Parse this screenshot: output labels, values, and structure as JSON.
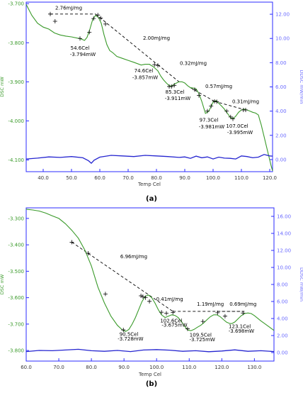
{
  "colors": {
    "dsc": "#3a9a2a",
    "ddsc": "#2525d0",
    "frame": "#2b2bff",
    "axis_text": "#3a3a3a",
    "left_label": "#3a9a2a",
    "right_label": "#6a6aff",
    "annotation": "#000000"
  },
  "chart_data": [
    {
      "type": "line",
      "panel_label": "(a)",
      "xlabel": "Temp Cel",
      "ylabel_left": "DSC mW",
      "ylabel_right": "DDSC mW/min",
      "xlim": [
        34,
        121
      ],
      "ylim_left": [
        -4.13,
        -3.696
      ],
      "ylim_right": [
        -1.0,
        13.0
      ],
      "x_ticks": [
        40.0,
        50.0,
        60.0,
        70.0,
        80.0,
        90.0,
        100.0,
        110.0,
        120.0
      ],
      "x_tick_labels": [
        "40.0",
        "50.0",
        "60.0",
        "70.0",
        "80.0",
        "90.0",
        "100.0",
        "110.0",
        "120.0"
      ],
      "y_left_ticks": [
        -4.1,
        -4.0,
        -3.9,
        -3.8,
        -3.7
      ],
      "y_left_tick_labels": [
        "-4.100",
        "-4.000",
        "-3.900",
        "-3.800",
        "-3.700"
      ],
      "y_right_ticks": [
        0,
        2,
        4,
        6,
        8,
        10,
        12
      ],
      "y_right_tick_labels": [
        "0.00",
        "2.00",
        "4.00",
        "6.00",
        "8.00",
        "10.00",
        "12.00"
      ],
      "series": [
        {
          "axis": "left",
          "x": [
            34,
            36,
            38,
            40,
            42,
            44,
            46,
            48,
            50,
            52,
            53,
            54.6,
            55.5,
            56.5,
            57.5,
            58.5,
            59.5,
            60.5,
            61.5,
            62.5,
            63.5,
            64.5,
            66,
            68,
            70,
            72,
            74.6,
            76,
            77.5,
            79,
            80.5,
            81.5,
            82.5,
            83.5,
            84.5,
            85.3,
            86.5,
            88,
            89,
            90,
            91,
            92,
            93,
            94,
            95,
            96,
            97.3,
            98.5,
            100,
            101,
            102,
            103,
            104,
            105,
            106,
            107,
            108,
            109,
            110,
            111,
            112,
            113,
            114,
            115,
            116,
            116.5,
            117,
            117.5,
            118,
            118.5,
            119,
            119.5,
            120,
            120.5,
            121
          ],
          "y": [
            -3.702,
            -3.73,
            -3.75,
            -3.76,
            -3.765,
            -3.775,
            -3.78,
            -3.783,
            -3.785,
            -3.788,
            -3.789,
            -3.794,
            -3.786,
            -3.765,
            -3.74,
            -3.73,
            -3.735,
            -3.75,
            -3.78,
            -3.805,
            -3.82,
            -3.825,
            -3.835,
            -3.84,
            -3.845,
            -3.85,
            -3.857,
            -3.855,
            -3.855,
            -3.862,
            -3.872,
            -3.885,
            -3.895,
            -3.903,
            -3.91,
            -3.911,
            -3.905,
            -3.9,
            -3.9,
            -3.903,
            -3.91,
            -3.915,
            -3.916,
            -3.918,
            -3.93,
            -3.95,
            -3.981,
            -3.975,
            -3.952,
            -3.948,
            -3.955,
            -3.962,
            -3.97,
            -3.98,
            -3.99,
            -3.995,
            -3.988,
            -3.978,
            -3.972,
            -3.97,
            -3.972,
            -3.975,
            -3.978,
            -3.98,
            -3.985,
            -3.998,
            -4.01,
            -4.025,
            -4.04,
            -4.055,
            -4.07,
            -4.085,
            -4.1,
            -4.115,
            -4.128
          ]
        },
        {
          "axis": "right",
          "x": [
            34,
            38,
            42,
            46,
            50,
            54,
            56,
            57,
            58,
            60,
            64,
            68,
            72,
            76,
            80,
            84,
            88,
            90,
            92,
            94,
            96,
            98,
            100,
            102,
            104,
            106,
            108,
            110,
            112,
            114,
            116,
            118,
            120,
            121
          ],
          "y": [
            0.05,
            0.12,
            0.22,
            0.18,
            0.25,
            0.15,
            -0.1,
            -0.3,
            -0.05,
            0.2,
            0.35,
            0.3,
            0.25,
            0.35,
            0.3,
            0.25,
            0.18,
            0.22,
            0.1,
            0.28,
            0.15,
            0.22,
            0.05,
            0.2,
            0.12,
            0.1,
            0.05,
            0.3,
            0.25,
            0.15,
            0.2,
            0.42,
            0.3,
            0.28
          ]
        }
      ],
      "baselines": [
        [
          42.5,
          -3.7265,
          58.5,
          -3.7265
        ],
        [
          58.5,
          -3.7265,
          80.5,
          -3.8565
        ],
        [
          80.5,
          -3.8565,
          88.0,
          -3.9
        ],
        [
          92.0,
          -3.915,
          100.5,
          -3.95
        ],
        [
          100.5,
          -3.95,
          111.5,
          -3.972
        ]
      ],
      "markers": [
        [
          42.5,
          -3.7265
        ],
        [
          44.2,
          -3.745
        ],
        [
          53.0,
          -3.789
        ],
        [
          56.3,
          -3.773
        ],
        [
          57.8,
          -3.738
        ],
        [
          59.3,
          -3.729
        ],
        [
          60.3,
          -3.737
        ],
        [
          62.0,
          -3.752
        ],
        [
          79.3,
          -3.856
        ],
        [
          80.5,
          -3.858
        ],
        [
          84.5,
          -3.912
        ],
        [
          85.3,
          -3.912
        ],
        [
          86.3,
          -3.909
        ],
        [
          93.5,
          -3.92
        ],
        [
          95.0,
          -3.935
        ],
        [
          98.0,
          -3.975
        ],
        [
          99.3,
          -3.962
        ],
        [
          100.5,
          -3.95
        ],
        [
          101.3,
          -3.951
        ],
        [
          104.8,
          -3.975
        ],
        [
          106.2,
          -3.99
        ],
        [
          107.0,
          -3.995
        ],
        [
          110.7,
          -3.972
        ],
        [
          111.5,
          -3.972
        ]
      ],
      "annotations": [
        {
          "text": "2.76mJ/mg",
          "x": 49.0,
          "y": -3.715,
          "anchor": "middle"
        },
        {
          "text": "54.6Cel",
          "x": 53.0,
          "y": -3.818,
          "anchor": "middle"
        },
        {
          "text": "-3.794mW",
          "x": 54.0,
          "y": -3.834,
          "anchor": "middle"
        },
        {
          "text": "2.00mJ/mg",
          "x": 80.0,
          "y": -3.792,
          "anchor": "middle"
        },
        {
          "text": "74.6Cel",
          "x": 75.5,
          "y": -3.876,
          "anchor": "middle"
        },
        {
          "text": "-3.857mW",
          "x": 76.0,
          "y": -3.893,
          "anchor": "middle"
        },
        {
          "text": "0.32mJ/mg",
          "x": 93.0,
          "y": -3.857,
          "anchor": "middle"
        },
        {
          "text": "85.3Cel",
          "x": 86.5,
          "y": -3.93,
          "anchor": "middle"
        },
        {
          "text": "-3.911mW",
          "x": 87.5,
          "y": -3.947,
          "anchor": "middle"
        },
        {
          "text": "0.57mJ/mg",
          "x": 102.0,
          "y": -3.916,
          "anchor": "middle"
        },
        {
          "text": "97.3Cel",
          "x": 98.5,
          "y": -4.002,
          "anchor": "middle"
        },
        {
          "text": "-3.981mW",
          "x": 99.5,
          "y": -4.019,
          "anchor": "middle"
        },
        {
          "text": "0.31mJ/mg",
          "x": 111.5,
          "y": -3.955,
          "anchor": "middle"
        },
        {
          "text": "107.0Cel",
          "x": 108.5,
          "y": -4.017,
          "anchor": "middle"
        },
        {
          "text": "-3.995mW",
          "x": 109.5,
          "y": -4.034,
          "anchor": "middle"
        }
      ]
    },
    {
      "type": "line",
      "panel_label": "(b)",
      "xlabel": "Temp Cel",
      "ylabel_left": "DSC mW",
      "ylabel_right": "DDSC mW/min",
      "xlim": [
        60,
        136
      ],
      "ylim_left": [
        -3.84,
        -3.26
      ],
      "ylim_right": [
        -1.0,
        17.0
      ],
      "x_ticks": [
        60.0,
        70.0,
        80.0,
        90.0,
        100.0,
        110.0,
        120.0,
        130.0
      ],
      "x_tick_labels": [
        "60.0",
        "70.0",
        "80.0",
        "90.0",
        "100.0",
        "110.0",
        "120.0",
        "130.0"
      ],
      "y_left_ticks": [
        -3.8,
        -3.7,
        -3.6,
        -3.5,
        -3.4,
        -3.3
      ],
      "y_left_tick_labels": [
        "-3.800",
        "-3.700",
        "-3.600",
        "-3.500",
        "-3.400",
        "-3.300"
      ],
      "y_right_ticks": [
        0,
        2,
        4,
        6,
        8,
        10,
        12,
        14,
        16
      ],
      "y_right_tick_labels": [
        "0.00",
        "2.00",
        "4.00",
        "6.00",
        "8.00",
        "10.00",
        "12.00",
        "14.00",
        "16.00"
      ],
      "series": [
        {
          "axis": "left",
          "x": [
            60,
            62,
            64,
            66,
            68,
            70,
            72,
            74,
            76,
            78,
            80,
            82,
            84,
            86,
            88,
            89.5,
            90.5,
            91.5,
            92.5,
            93.5,
            94.5,
            95.5,
            96.5,
            97.5,
            98.5,
            99.5,
            100.5,
            101.5,
            102.6,
            103.6,
            104.6,
            105.6,
            106.6,
            107.6,
            108.6,
            109.5,
            110.5,
            111.5,
            112.5,
            113.5,
            114.5,
            115.5,
            116.5,
            117.5,
            118.5,
            119.5,
            120.5,
            121.5,
            122.5,
            123.1,
            124,
            125,
            126,
            127,
            128,
            129,
            130,
            131,
            132,
            133,
            134,
            135,
            136
          ],
          "y": [
            -3.265,
            -3.268,
            -3.272,
            -3.28,
            -3.29,
            -3.3,
            -3.32,
            -3.345,
            -3.375,
            -3.42,
            -3.48,
            -3.56,
            -3.62,
            -3.67,
            -3.705,
            -3.722,
            -3.728,
            -3.72,
            -3.7,
            -3.675,
            -3.645,
            -3.615,
            -3.595,
            -3.59,
            -3.6,
            -3.62,
            -3.645,
            -3.665,
            -3.675,
            -3.67,
            -3.665,
            -3.667,
            -3.675,
            -3.69,
            -3.708,
            -3.722,
            -3.725,
            -3.72,
            -3.712,
            -3.705,
            -3.695,
            -3.683,
            -3.672,
            -3.665,
            -3.665,
            -3.672,
            -3.683,
            -3.693,
            -3.698,
            -3.698,
            -3.692,
            -3.68,
            -3.668,
            -3.66,
            -3.658,
            -3.66,
            -3.668,
            -3.678,
            -3.688,
            -3.697,
            -3.706,
            -3.715,
            -3.724
          ]
        },
        {
          "axis": "right",
          "x": [
            60,
            64,
            68,
            72,
            76,
            80,
            84,
            88,
            92,
            96,
            100,
            104,
            108,
            112,
            116,
            120,
            124,
            128,
            132,
            136
          ],
          "y": [
            0.12,
            0.25,
            0.22,
            0.3,
            0.38,
            0.22,
            0.15,
            0.25,
            0.12,
            0.3,
            0.35,
            0.28,
            0.15,
            0.22,
            0.1,
            0.18,
            0.32,
            0.15,
            0.22,
            0.12
          ]
        }
      ],
      "baselines": [
        [
          74.0,
          -3.39,
          105.0,
          -3.652
        ],
        [
          105.0,
          -3.652,
          126.5,
          -3.652
        ],
        [
          118.5,
          -3.652,
          127.0,
          -3.652
        ]
      ],
      "markers": [
        [
          74.0,
          -3.39
        ],
        [
          79.0,
          -3.432
        ],
        [
          84.3,
          -3.586
        ],
        [
          89.8,
          -3.722
        ],
        [
          95.2,
          -3.593
        ],
        [
          95.8,
          -3.596
        ],
        [
          96.6,
          -3.6
        ],
        [
          97.8,
          -3.614
        ],
        [
          101.5,
          -3.655
        ],
        [
          103.0,
          -3.659
        ],
        [
          105.0,
          -3.656
        ],
        [
          109.5,
          -3.718
        ],
        [
          114.2,
          -3.69
        ],
        [
          118.7,
          -3.657
        ],
        [
          121.0,
          -3.67
        ],
        [
          126.5,
          -3.658
        ]
      ],
      "annotations": [
        {
          "text": "6.96mJ/mg",
          "x": 93.0,
          "y": -3.45,
          "anchor": "middle"
        },
        {
          "text": "0.41mJ/mg",
          "x": 104.0,
          "y": -3.612,
          "anchor": "middle"
        },
        {
          "text": "1.19mJ/mg",
          "x": 116.5,
          "y": -3.63,
          "anchor": "middle"
        },
        {
          "text": "0.69mJ/mg",
          "x": 126.5,
          "y": -3.63,
          "anchor": "middle"
        },
        {
          "text": "90.5Cel",
          "x": 91.5,
          "y": -3.745,
          "anchor": "middle"
        },
        {
          "text": "-3.728mW",
          "x": 92.0,
          "y": -3.762,
          "anchor": "middle"
        },
        {
          "text": "102.6Cel",
          "x": 104.5,
          "y": -3.693,
          "anchor": "middle"
        },
        {
          "text": "-3.675mW",
          "x": 105.5,
          "y": -3.71,
          "anchor": "middle"
        },
        {
          "text": "109.5Cel",
          "x": 113.5,
          "y": -3.748,
          "anchor": "middle"
        },
        {
          "text": "-3.725mW",
          "x": 114.0,
          "y": -3.765,
          "anchor": "middle"
        },
        {
          "text": "123.1Cel",
          "x": 125.5,
          "y": -3.715,
          "anchor": "middle"
        },
        {
          "text": "-3.698mW",
          "x": 126.0,
          "y": -3.732,
          "anchor": "middle"
        }
      ]
    }
  ]
}
